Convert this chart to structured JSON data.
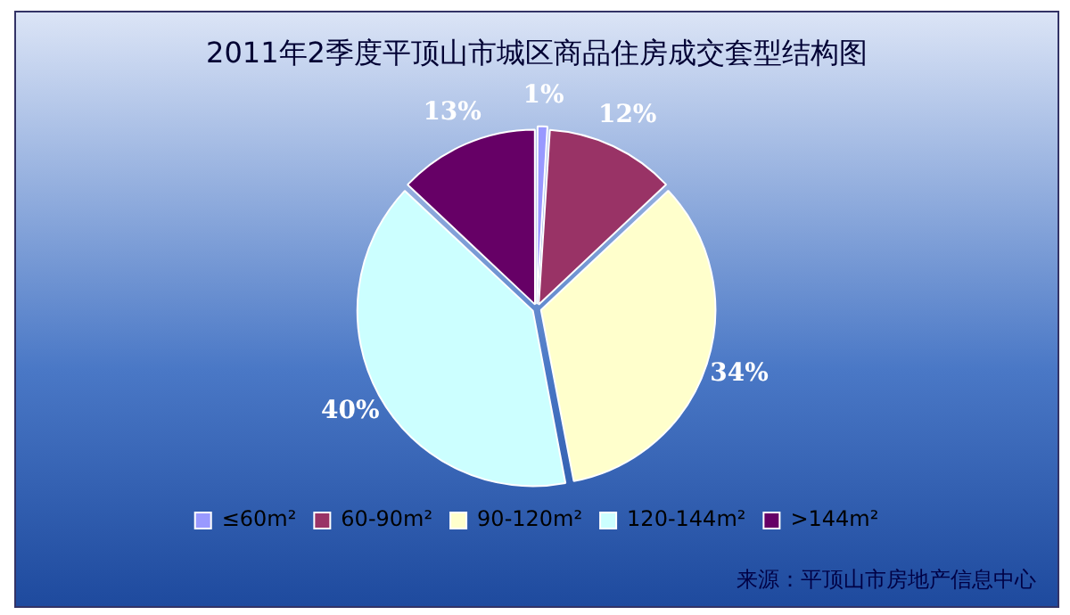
{
  "chart_data": {
    "type": "pie",
    "title": "2011年2季度平顶山市城区商品住房成交套型结构图",
    "categories": [
      "≤60m²",
      "60-90m²",
      "90-120m²",
      "120-144m²",
      ">144m²"
    ],
    "values": [
      1,
      12,
      34,
      40,
      13
    ],
    "value_labels": [
      "1%",
      "12%",
      "34%",
      "40%",
      "13%"
    ],
    "colors": [
      "#9999ff",
      "#993366",
      "#ffffcc",
      "#ccffff",
      "#660066"
    ],
    "legend": "bottom",
    "annotations": [
      "来源：平顶山市房地产信息中心"
    ]
  }
}
